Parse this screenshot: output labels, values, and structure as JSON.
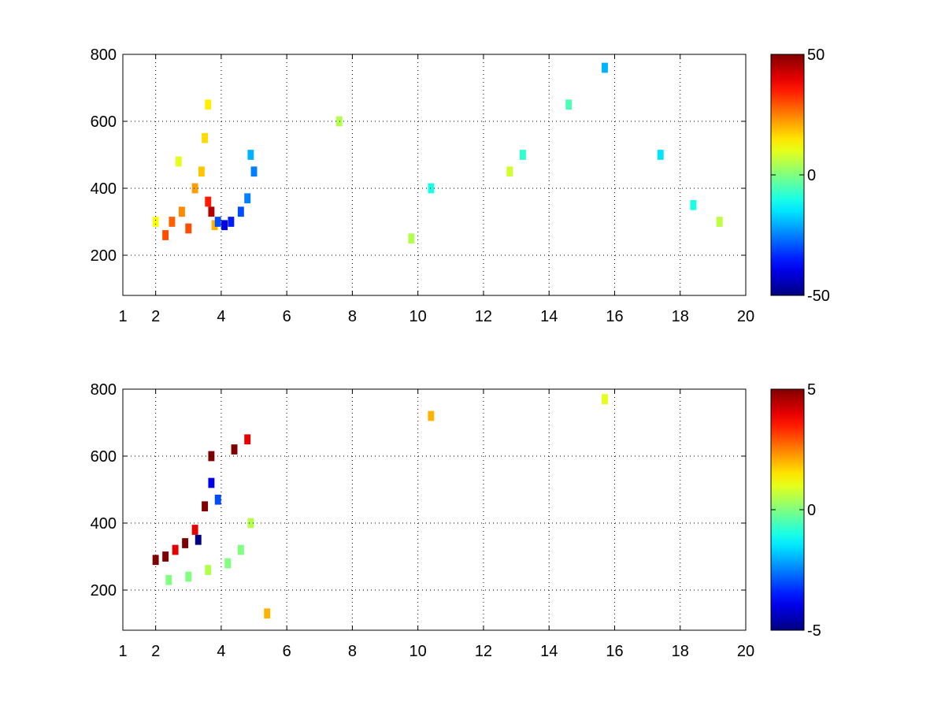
{
  "chart_data": [
    {
      "type": "heatmap",
      "title": "",
      "xlabel": "",
      "ylabel": "",
      "xlim": [
        1,
        20
      ],
      "ylim": [
        80,
        800
      ],
      "x_ticks": [
        1,
        2,
        4,
        6,
        8,
        10,
        12,
        14,
        16,
        18,
        20
      ],
      "x_tick_labels": [
        "1",
        "2",
        "4",
        "6",
        "8",
        "10",
        "12",
        "14",
        "16",
        "18",
        "20"
      ],
      "y_ticks": [
        200,
        400,
        600,
        800
      ],
      "y_tick_labels": [
        "200",
        "400",
        "600",
        "800"
      ],
      "grid": true,
      "colormap": "jet",
      "clim": [
        -50,
        50
      ],
      "colorbar_ticks": [
        -50,
        0,
        50
      ],
      "colorbar_tick_labels": [
        "-50",
        "0",
        "50"
      ],
      "cells": [
        [
          2.0,
          300,
          12
        ],
        [
          2.3,
          260,
          30
        ],
        [
          2.5,
          300,
          28
        ],
        [
          2.8,
          330,
          24
        ],
        [
          3.0,
          280,
          30
        ],
        [
          3.2,
          400,
          22
        ],
        [
          3.4,
          450,
          18
        ],
        [
          3.6,
          360,
          35
        ],
        [
          3.7,
          330,
          45
        ],
        [
          3.8,
          290,
          20
        ],
        [
          3.9,
          300,
          -30
        ],
        [
          4.1,
          290,
          -40
        ],
        [
          4.3,
          300,
          -35
        ],
        [
          4.6,
          330,
          -30
        ],
        [
          4.8,
          370,
          -25
        ],
        [
          3.5,
          550,
          16
        ],
        [
          3.6,
          650,
          14
        ],
        [
          2.7,
          480,
          10
        ],
        [
          4.9,
          500,
          -20
        ],
        [
          5.0,
          450,
          -25
        ],
        [
          10.4,
          400,
          -10
        ],
        [
          13.2,
          500,
          -8
        ],
        [
          15.7,
          760,
          -20
        ],
        [
          17.4,
          500,
          -15
        ],
        [
          18.4,
          350,
          -10
        ],
        [
          7.6,
          600,
          5
        ],
        [
          9.8,
          250,
          5
        ],
        [
          12.8,
          450,
          8
        ],
        [
          14.6,
          650,
          -5
        ],
        [
          19.2,
          300,
          6
        ]
      ]
    },
    {
      "type": "heatmap",
      "title": "",
      "xlabel": "",
      "ylabel": "",
      "xlim": [
        1,
        20
      ],
      "ylim": [
        80,
        800
      ],
      "x_ticks": [
        1,
        2,
        4,
        6,
        8,
        10,
        12,
        14,
        16,
        18,
        20
      ],
      "x_tick_labels": [
        "1",
        "2",
        "4",
        "6",
        "8",
        "10",
        "12",
        "14",
        "16",
        "18",
        "20"
      ],
      "y_ticks": [
        200,
        400,
        600,
        800
      ],
      "y_tick_labels": [
        "200",
        "400",
        "600",
        "800"
      ],
      "grid": true,
      "colormap": "jet",
      "clim": [
        -5,
        5
      ],
      "colorbar_ticks": [
        -5,
        0,
        5
      ],
      "colorbar_tick_labels": [
        "-5",
        "0",
        "5"
      ],
      "cells": [
        [
          2.0,
          290,
          5
        ],
        [
          2.3,
          300,
          5
        ],
        [
          2.6,
          320,
          4
        ],
        [
          2.9,
          340,
          5
        ],
        [
          3.2,
          380,
          4
        ],
        [
          3.5,
          450,
          5
        ],
        [
          3.7,
          520,
          -4
        ],
        [
          3.7,
          600,
          5
        ],
        [
          3.9,
          470,
          -3
        ],
        [
          2.4,
          230,
          0
        ],
        [
          3.0,
          240,
          0
        ],
        [
          3.6,
          260,
          0.5
        ],
        [
          4.2,
          280,
          0
        ],
        [
          4.6,
          320,
          0
        ],
        [
          4.9,
          400,
          0.5
        ],
        [
          3.3,
          350,
          -5
        ],
        [
          4.4,
          620,
          5
        ],
        [
          4.8,
          650,
          4
        ],
        [
          10.4,
          720,
          2
        ],
        [
          15.7,
          770,
          1
        ],
        [
          5.4,
          130,
          2
        ]
      ]
    }
  ]
}
